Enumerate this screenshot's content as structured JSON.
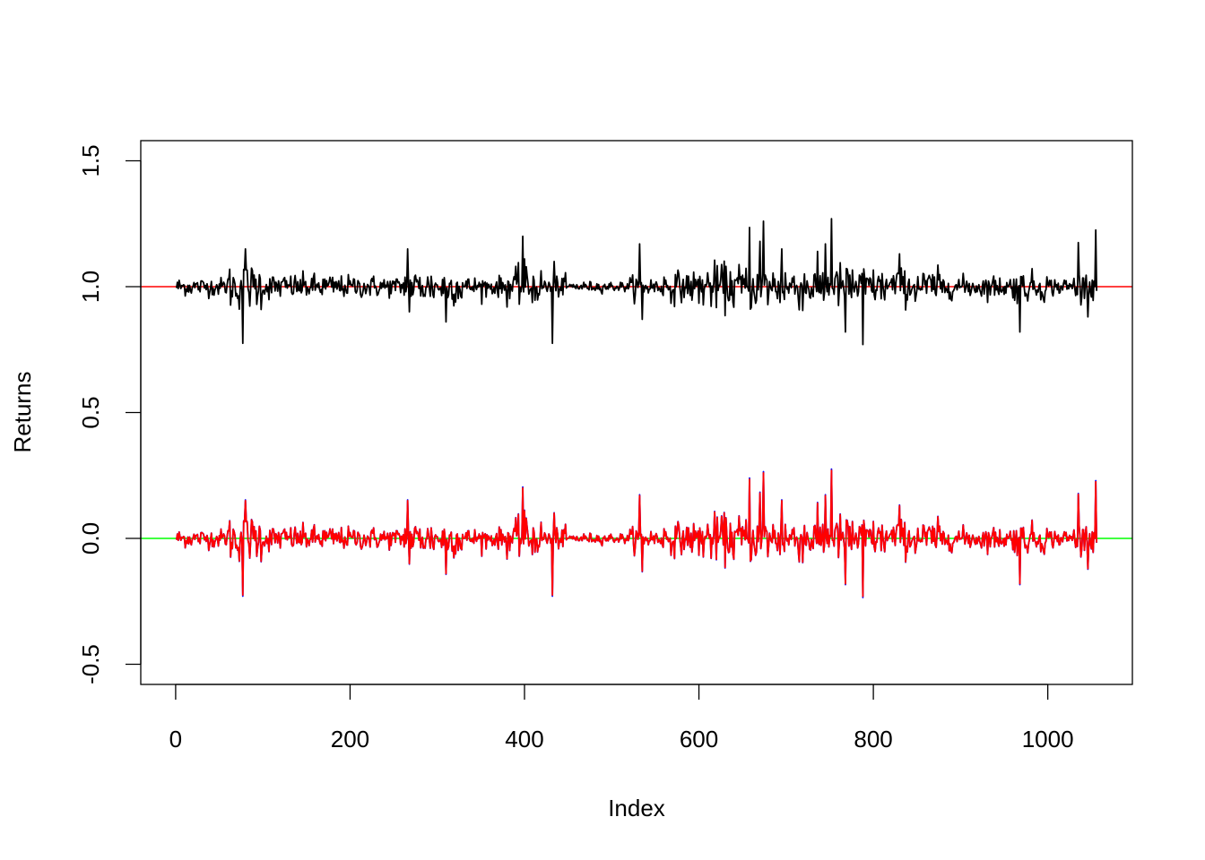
{
  "chart_data": {
    "type": "line",
    "title": "",
    "xlabel": "Index",
    "ylabel": "Returns",
    "xlim": [
      -40,
      1097
    ],
    "ylim": [
      -0.58,
      1.58
    ],
    "x_ticks": [
      0,
      200,
      400,
      600,
      800,
      1000
    ],
    "x_tick_labels": [
      "0",
      "200",
      "400",
      "600",
      "800",
      "1000"
    ],
    "y_ticks": [
      -0.5,
      0.0,
      0.5,
      1.0,
      1.5
    ],
    "y_tick_labels": [
      "-0.5",
      "0.0",
      "0.5",
      "1.0",
      "1.5"
    ],
    "grid": false,
    "n_points": 1056,
    "hlines": [
      {
        "y": 1.0,
        "color": "#FF0000"
      },
      {
        "y": 0.0,
        "color": "#00FF00"
      }
    ],
    "series_style": [
      {
        "color": "#000000",
        "offset": 1.0,
        "scale": 1.0
      },
      {
        "color": "#0000FF",
        "offset": 0.0,
        "scale": 1.02
      },
      {
        "color": "#FF0000",
        "offset": 0.0,
        "scale": 1.0
      }
    ],
    "notable_points": [
      {
        "x": 77,
        "y": 0.225
      },
      {
        "x": 77,
        "y": -0.225
      },
      {
        "x": 80,
        "y": 0.15
      },
      {
        "x": 266,
        "y": 0.15
      },
      {
        "x": 268,
        "y": -0.1
      },
      {
        "x": 310,
        "y": -0.14
      },
      {
        "x": 398,
        "y": 0.2
      },
      {
        "x": 400,
        "y": 0.11
      },
      {
        "x": 432,
        "y": -0.225
      },
      {
        "x": 434,
        "y": 0.1
      },
      {
        "x": 532,
        "y": 0.17
      },
      {
        "x": 535,
        "y": -0.13
      },
      {
        "x": 658,
        "y": 0.235
      },
      {
        "x": 670,
        "y": 0.18
      },
      {
        "x": 674,
        "y": 0.26
      },
      {
        "x": 695,
        "y": 0.15
      },
      {
        "x": 745,
        "y": 0.17
      },
      {
        "x": 752,
        "y": 0.27
      },
      {
        "x": 768,
        "y": -0.18
      },
      {
        "x": 788,
        "y": -0.23
      },
      {
        "x": 830,
        "y": 0.13
      },
      {
        "x": 968,
        "y": -0.18
      },
      {
        "x": 1035,
        "y": 0.175
      },
      {
        "x": 1055,
        "y": 0.225
      }
    ]
  }
}
